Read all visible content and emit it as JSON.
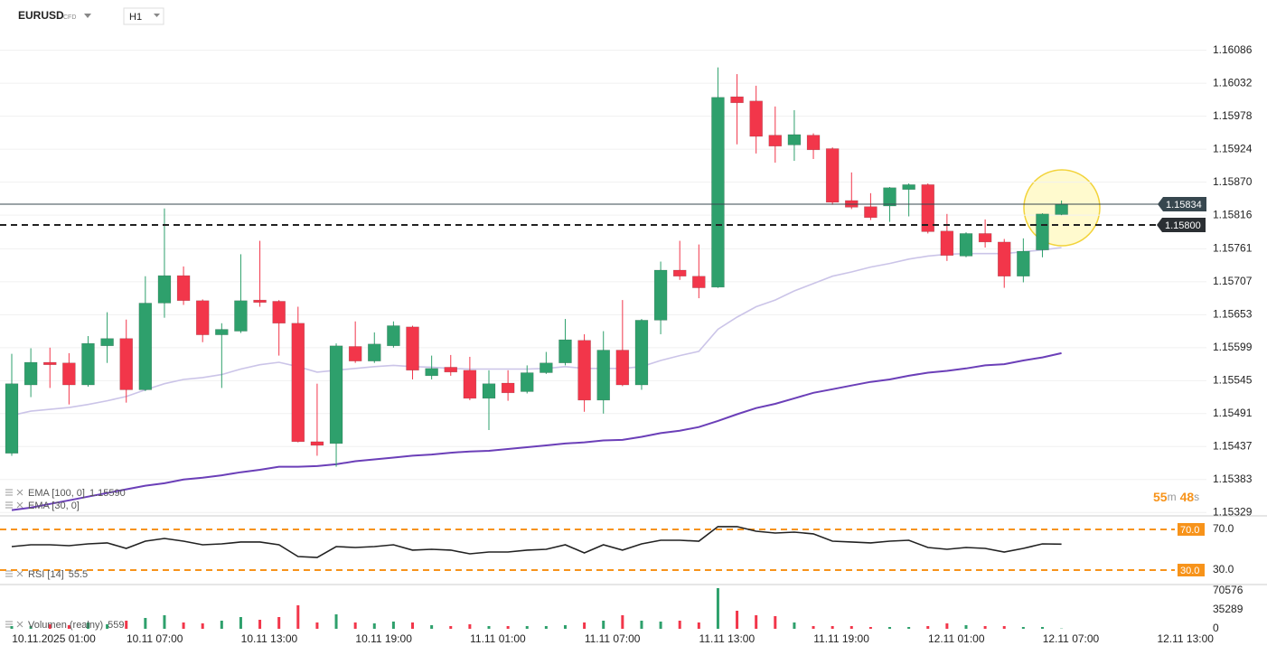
{
  "header": {
    "symbol": "EURUSD",
    "market": "CFD",
    "timeframe": "H1",
    "timer": [
      "55",
      "m",
      "48",
      "s"
    ]
  },
  "chart_data": [
    {
      "type": "candlestick",
      "up_color": "#2ea06c",
      "down_color": "#f2364a",
      "grid": true,
      "open": [
        1.15426,
        1.15538,
        1.15575,
        1.15574,
        1.15538,
        1.15602,
        1.15614,
        1.1553,
        1.15672,
        1.15717,
        1.15676,
        1.1562,
        1.15626,
        1.15677,
        1.15675,
        1.15639,
        1.15445,
        1.15442,
        1.15601,
        1.15577,
        1.15602,
        1.15633,
        1.15553,
        1.15567,
        1.15562,
        1.15516,
        1.15541,
        1.15527,
        1.15558,
        1.15574,
        1.15611,
        1.15513,
        1.15595,
        1.15538,
        1.15644,
        1.15726,
        1.15716,
        1.15698,
        1.1601,
        1.16003,
        1.15947,
        1.15931,
        1.15947,
        1.15925,
        1.1584,
        1.1583,
        1.15831,
        1.15858,
        1.15866,
        1.1579,
        1.15749,
        1.15786,
        1.15772,
        1.15716,
        1.15759,
        1.15817,
        null,
        null,
        null,
        null,
        null,
        null,
        null
      ],
      "high": [
        1.15589,
        1.15598,
        1.15599,
        1.1559,
        1.15618,
        1.15657,
        1.15645,
        1.15716,
        1.15827,
        1.15732,
        1.15678,
        1.15639,
        1.15752,
        1.15774,
        1.15677,
        1.15666,
        1.1554,
        1.15606,
        1.15642,
        1.15624,
        1.15642,
        1.15635,
        1.15586,
        1.15587,
        1.15584,
        1.15562,
        1.15562,
        1.1557,
        1.15592,
        1.15646,
        1.15621,
        1.15626,
        1.15677,
        1.15646,
        1.1574,
        1.15774,
        1.15768,
        1.16058,
        1.16047,
        1.16028,
        1.15994,
        1.15988,
        1.1595,
        1.15927,
        1.15886,
        1.15852,
        1.15862,
        1.15868,
        1.15868,
        1.15818,
        1.15788,
        1.15809,
        1.15777,
        1.15778,
        1.15819,
        1.1584,
        null,
        null,
        null,
        null,
        null,
        null,
        null
      ],
      "low": [
        1.15422,
        1.15518,
        1.15533,
        1.15506,
        1.15535,
        1.15574,
        1.15509,
        1.15528,
        1.15648,
        1.15669,
        1.15608,
        1.15533,
        1.15623,
        1.15666,
        1.15586,
        1.15444,
        1.15422,
        1.15404,
        1.15574,
        1.15574,
        1.15599,
        1.15547,
        1.15547,
        1.15553,
        1.15513,
        1.15464,
        1.15512,
        1.15524,
        1.15556,
        1.1557,
        1.15494,
        1.15491,
        1.15536,
        1.1553,
        1.15621,
        1.1571,
        1.1568,
        1.15697,
        1.15932,
        1.15917,
        1.15902,
        1.15905,
        1.15908,
        1.15833,
        1.15826,
        1.15808,
        1.15805,
        1.15814,
        1.15786,
        1.15741,
        1.15747,
        1.15763,
        1.15697,
        1.15706,
        1.15747,
        1.15816,
        null,
        null,
        null,
        null,
        null,
        null,
        null
      ],
      "close": [
        1.1554,
        1.15575,
        1.15571,
        1.15538,
        1.15606,
        1.15614,
        1.1553,
        1.15672,
        1.15717,
        1.15676,
        1.1562,
        1.15629,
        1.15676,
        1.15673,
        1.15639,
        1.15445,
        1.15439,
        1.15602,
        1.15577,
        1.15605,
        1.15635,
        1.15562,
        1.15565,
        1.15559,
        1.15516,
        1.1554,
        1.15525,
        1.15558,
        1.15574,
        1.15612,
        1.15513,
        1.15595,
        1.15538,
        1.15644,
        1.15726,
        1.15716,
        1.15697,
        1.16009,
        1.16,
        1.15945,
        1.15929,
        1.15948,
        1.15923,
        1.15837,
        1.15829,
        1.15812,
        1.15861,
        1.15866,
        1.15789,
        1.1575,
        1.15786,
        1.15772,
        1.15716,
        1.15757,
        1.15818,
        1.15834,
        null,
        null,
        null,
        null,
        null,
        null,
        null
      ],
      "series": [
        {
          "name": "EMA [100, 0]",
          "color": "#6b3fb8",
          "last_label": "1.15590",
          "values": [
            1.15333,
            1.15337,
            1.15343,
            1.15349,
            1.15355,
            1.15361,
            1.15367,
            1.15373,
            1.15377,
            1.15383,
            1.15386,
            1.1539,
            1.15395,
            1.15399,
            1.15404,
            1.15404,
            1.15405,
            1.15408,
            1.15413,
            1.15416,
            1.15419,
            1.15422,
            1.15424,
            1.15427,
            1.15429,
            1.1543,
            1.15433,
            1.15436,
            1.15439,
            1.15442,
            1.15444,
            1.15447,
            1.15448,
            1.15453,
            1.15459,
            1.15463,
            1.15469,
            1.15479,
            1.1549,
            1.155,
            1.15507,
            1.15516,
            1.15525,
            1.15531,
            1.15537,
            1.15543,
            1.15547,
            1.15553,
            1.15558,
            1.15561,
            1.15565,
            1.1557,
            1.15572,
            1.15578,
            1.15583,
            1.1559,
            null,
            null,
            null,
            null,
            null,
            null,
            null
          ]
        },
        {
          "name": "EMA [30, 0]",
          "color": "#cbc4e8",
          "values": [
            1.15488,
            1.15495,
            1.15498,
            1.15501,
            1.15506,
            1.15512,
            1.15519,
            1.1553,
            1.1554,
            1.15547,
            1.1555,
            1.15555,
            1.15564,
            1.15571,
            1.15575,
            1.15568,
            1.15559,
            1.15562,
            1.15565,
            1.15568,
            1.1557,
            1.15568,
            1.15567,
            1.15565,
            1.15564,
            1.15564,
            1.15564,
            1.15564,
            1.15565,
            1.15568,
            1.15565,
            1.15565,
            1.15565,
            1.15568,
            1.15578,
            1.15586,
            1.15593,
            1.15629,
            1.15649,
            1.15666,
            1.15677,
            1.15692,
            1.15704,
            1.15716,
            1.15723,
            1.15731,
            1.15737,
            1.15744,
            1.15749,
            1.15752,
            1.15753,
            1.15753,
            1.15753,
            1.15756,
            1.15759,
            1.15763,
            null,
            null,
            null,
            null,
            null,
            null,
            null
          ]
        }
      ],
      "price_lines": [
        {
          "value": 1.15834,
          "label": "1.15834",
          "style": "solid",
          "color": "#37474f"
        },
        {
          "value": 1.158,
          "label": "1.15800",
          "style": "dashed",
          "color": "#222222"
        }
      ],
      "ylim": [
        1.15325,
        1.16124
      ],
      "yticks": [
        1.16086,
        1.16032,
        1.15978,
        1.15924,
        {
          "value": 1.1587,
          "label": "1.15870"
        },
        1.15816,
        1.15761,
        1.15707,
        1.15653,
        1.15599,
        1.15545,
        1.15491,
        1.15437,
        1.15383,
        1.15329
      ]
    },
    {
      "type": "line",
      "level_color": "#f7931a",
      "series": [
        {
          "name": "RSI [14]",
          "color": "#222222",
          "values": [
            53.1,
            54.9,
            54.9,
            54,
            55.8,
            56.7,
            51.3,
            58.4,
            61.1,
            58.4,
            54.9,
            55.8,
            57.6,
            57.6,
            54.9,
            43.3,
            42.4,
            53.1,
            52.2,
            53.1,
            54.9,
            49.6,
            50.4,
            49.6,
            46,
            47.8,
            47.8,
            49.6,
            50.4,
            54.9,
            46.9,
            54.9,
            49.6,
            55.8,
            59.3,
            59.3,
            58.4,
            72.7,
            72.7,
            68.2,
            66.4,
            67.3,
            65.6,
            58.4,
            57.6,
            56.7,
            58.4,
            59.3,
            52.2,
            50.4,
            52.2,
            51.3,
            47.8,
            51.3,
            55.8,
            55.5,
            null,
            null,
            null,
            null,
            null,
            null,
            null
          ]
        }
      ],
      "ylim": [
        16.7,
        82.4
      ],
      "yticks": [
        {
          "value": 70,
          "label": "70.0"
        },
        {
          "value": 30,
          "label": "30.0"
        }
      ]
    },
    {
      "type": "bar",
      "categories": [
        null,
        null,
        "10.11.2025 01:00",
        null,
        null,
        null,
        null,
        null,
        "10.11 07:00",
        null,
        null,
        null,
        null,
        null,
        "10.11 13:00",
        null,
        null,
        null,
        null,
        null,
        "10.11 19:00",
        null,
        null,
        null,
        null,
        null,
        "11.11 01:00",
        null,
        null,
        null,
        null,
        null,
        "11.11 07:00",
        null,
        null,
        null,
        null,
        null,
        "11.11 13:00",
        null,
        null,
        null,
        null,
        null,
        "11.11 19:00",
        null,
        null,
        null,
        null,
        null,
        "12.11 01:00",
        null,
        null,
        null,
        null,
        null,
        "12.11 07:00",
        null,
        null,
        null,
        null,
        null,
        "12.11 13:00"
      ],
      "series": [
        {
          "name": "Volumen (realny)",
          "values": [
            5040,
            5040,
            8400,
            6720,
            11760,
            8400,
            15120,
            20160,
            25200,
            11760,
            10080,
            15120,
            21840,
            16800,
            21840,
            43680,
            11760,
            26880,
            11760,
            10080,
            13440,
            11760,
            6720,
            5040,
            8400,
            5040,
            5040,
            5040,
            5040,
            6720,
            11760,
            15120,
            25200,
            15120,
            13440,
            15120,
            11760,
            75600,
            33600,
            25200,
            23520,
            11760,
            5040,
            5040,
            5040,
            3360,
            3360,
            3360,
            5040,
            10080,
            6720,
            5040,
            5040,
            3360,
            3360,
            559,
            null,
            null,
            null,
            null,
            null,
            null,
            null
          ]
        }
      ],
      "ylim": [
        0,
        80640
      ],
      "yticks": [
        0,
        35289,
        70576
      ]
    }
  ]
}
